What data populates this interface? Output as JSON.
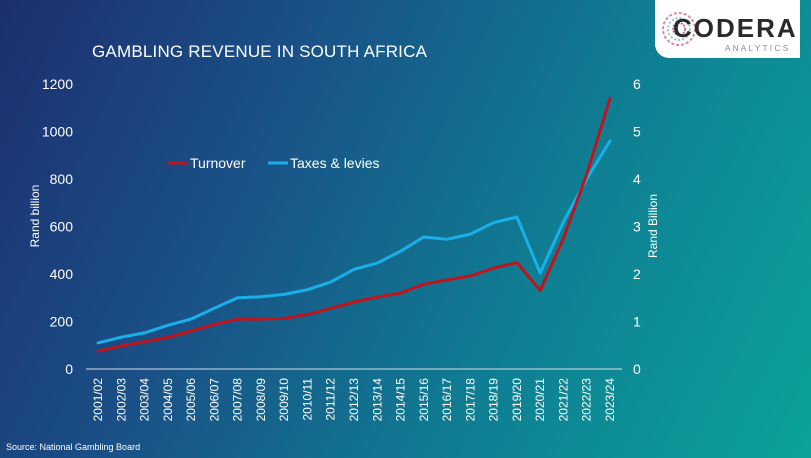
{
  "title": "GAMBLING REVENUE IN SOUTH AFRICA",
  "source": "Source:  National Gambling Board",
  "logo": {
    "name": "CODERA",
    "sub": "ANALYTICS"
  },
  "colors": {
    "turnover": "#c0141c",
    "taxes": "#19b0ea",
    "text": "#ffffff"
  },
  "chart_data": {
    "type": "line",
    "title": "GAMBLING REVENUE IN SOUTH AFRICA",
    "ylabel": "Rand billion",
    "y2label": "Rand Billion",
    "ylim": [
      0,
      1200
    ],
    "y2lim": [
      0,
      6
    ],
    "yticks": [
      0,
      200,
      400,
      600,
      800,
      1000,
      1200
    ],
    "y2ticks": [
      0,
      1,
      2,
      3,
      4,
      5,
      6
    ],
    "legend_position": "top-left",
    "categories": [
      "2001/02",
      "2002/03",
      "2003/04",
      "2004/05",
      "2005/06",
      "2006/07",
      "2007/08",
      "2008/09",
      "2009/10",
      "2010/11",
      "2011/12",
      "2012/13",
      "2013/14",
      "2014/15",
      "2015/16",
      "2016/17",
      "2017/18",
      "2018/19",
      "2019/20",
      "2020/21",
      "2021/22",
      "2022/23",
      "2023/24"
    ],
    "series": [
      {
        "name": "Turnover",
        "axis": "left",
        "values": [
          75,
          97,
          115,
          133,
          160,
          188,
          210,
          210,
          213,
          230,
          255,
          282,
          303,
          320,
          357,
          375,
          392,
          425,
          448,
          330,
          550,
          820,
          1140
        ]
      },
      {
        "name": "Taxes & levies",
        "axis": "right",
        "values": [
          0.55,
          0.67,
          0.76,
          0.92,
          1.05,
          1.28,
          1.5,
          1.52,
          1.57,
          1.67,
          1.83,
          2.1,
          2.23,
          2.48,
          2.78,
          2.73,
          2.84,
          3.08,
          3.2,
          2.02,
          3.1,
          4.0,
          4.8
        ]
      }
    ]
  }
}
